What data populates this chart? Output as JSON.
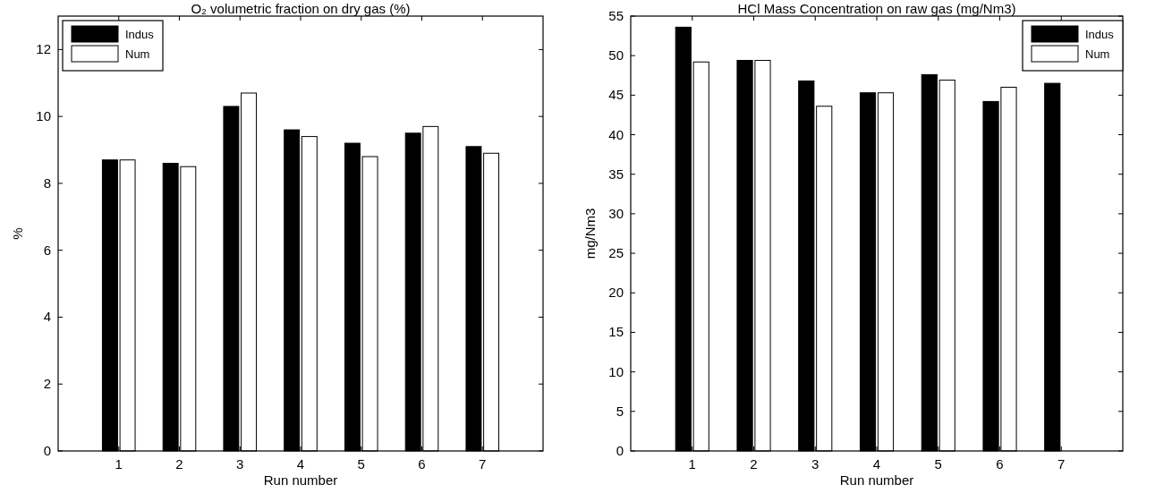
{
  "chart_data": [
    {
      "type": "bar",
      "title": "O₂ volumetric fraction on dry gas (%)",
      "xlabel": "Run number",
      "ylabel": "%",
      "x": [
        1,
        2,
        3,
        4,
        5,
        6,
        7
      ],
      "xlim": [
        0,
        8
      ],
      "xticks": [
        1,
        2,
        3,
        4,
        5,
        6,
        7
      ],
      "ylim": [
        0,
        13
      ],
      "yticks": [
        0,
        2,
        4,
        6,
        8,
        10,
        12
      ],
      "legend": "top left",
      "grid": false,
      "series": [
        {
          "name": "Indus",
          "color": "#000000",
          "values": [
            8.7,
            8.6,
            10.3,
            9.6,
            9.2,
            9.5,
            9.1
          ]
        },
        {
          "name": "Num",
          "color": "#ffffff",
          "values": [
            8.7,
            8.5,
            10.7,
            9.4,
            8.8,
            9.7,
            8.9
          ]
        }
      ]
    },
    {
      "type": "bar",
      "title": "HCl Mass Concentration on raw gas  (mg/Nm3)",
      "xlabel": "Run number",
      "ylabel": "mg/Nm3",
      "x": [
        1,
        2,
        3,
        4,
        5,
        6,
        7
      ],
      "xlim": [
        0,
        8
      ],
      "xticks": [
        1,
        2,
        3,
        4,
        5,
        6,
        7
      ],
      "ylim": [
        0,
        55
      ],
      "yticks": [
        0,
        5,
        10,
        15,
        20,
        25,
        30,
        35,
        40,
        45,
        50,
        55
      ],
      "legend": "top right",
      "grid": false,
      "series": [
        {
          "name": "Indus",
          "color": "#000000",
          "values": [
            53.6,
            49.4,
            46.8,
            45.3,
            47.6,
            44.2,
            46.5
          ]
        },
        {
          "name": "Num",
          "color": "#ffffff",
          "values": [
            49.2,
            49.4,
            43.6,
            45.3,
            46.9,
            46.0,
            null
          ]
        }
      ]
    }
  ]
}
